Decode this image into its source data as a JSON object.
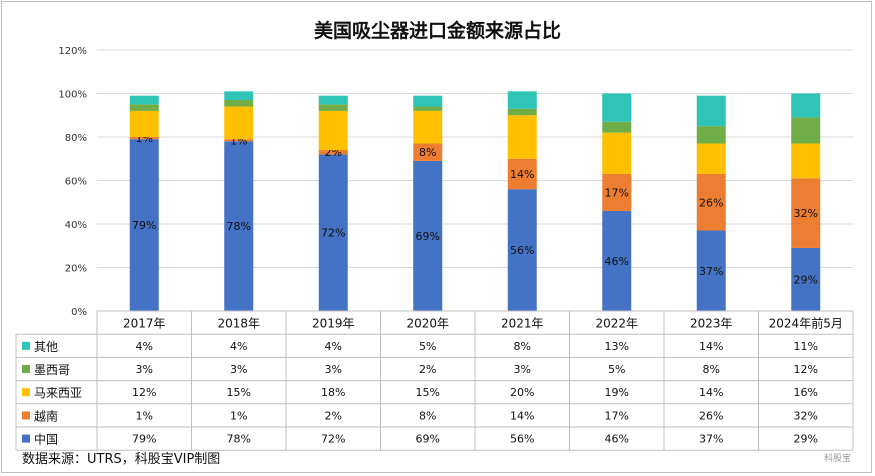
{
  "chart_data": {
    "type": "bar",
    "stacked": true,
    "title": "美国吸尘器进口金额来源占比",
    "categories": [
      "2017年",
      "2018年",
      "2019年",
      "2020年",
      "2021年",
      "2022年",
      "2023年",
      "2024年前5月"
    ],
    "ylim": [
      0,
      120
    ],
    "yticks": [
      "0%",
      "20%",
      "40%",
      "60%",
      "80%",
      "100%",
      "120%"
    ],
    "ytick_values": [
      0,
      20,
      40,
      60,
      80,
      100,
      120
    ],
    "grid": true,
    "legend": "data-table",
    "series": [
      {
        "name": "中国",
        "color": "#4472C4",
        "values": [
          79,
          78,
          72,
          69,
          56,
          46,
          37,
          29
        ],
        "labels": [
          "79%",
          "78%",
          "72%",
          "69%",
          "56%",
          "46%",
          "37%",
          "29%"
        ],
        "show_labels": true
      },
      {
        "name": "越南",
        "color": "#ED7D31",
        "values": [
          1,
          1,
          2,
          8,
          14,
          17,
          26,
          32
        ],
        "labels": [
          "1%",
          "1%",
          "2%",
          "8%",
          "14%",
          "17%",
          "26%",
          "32%"
        ],
        "show_labels": true
      },
      {
        "name": "马来西亚",
        "color": "#FFC000",
        "values": [
          12,
          15,
          18,
          15,
          20,
          19,
          14,
          16
        ],
        "labels": [
          "12%",
          "15%",
          "18%",
          "15%",
          "20%",
          "19%",
          "14%",
          "16%"
        ],
        "show_labels": false
      },
      {
        "name": "墨西哥",
        "color": "#70AD47",
        "values": [
          3,
          3,
          3,
          2,
          3,
          5,
          8,
          12
        ],
        "labels": [
          "3%",
          "3%",
          "3%",
          "2%",
          "3%",
          "5%",
          "8%",
          "12%"
        ],
        "show_labels": false
      },
      {
        "name": "其他",
        "color": "#2EC4B6",
        "values": [
          4,
          4,
          4,
          5,
          8,
          13,
          14,
          11
        ],
        "labels": [
          "4%",
          "4%",
          "4%",
          "5%",
          "8%",
          "13%",
          "14%",
          "11%"
        ],
        "show_labels": false
      }
    ],
    "table_row_order": [
      "其他",
      "墨西哥",
      "马来西亚",
      "越南",
      "中国"
    ]
  },
  "footer": {
    "source": "数据来源：UTRS，科股宝VIP制图",
    "watermark": "科股宝"
  }
}
